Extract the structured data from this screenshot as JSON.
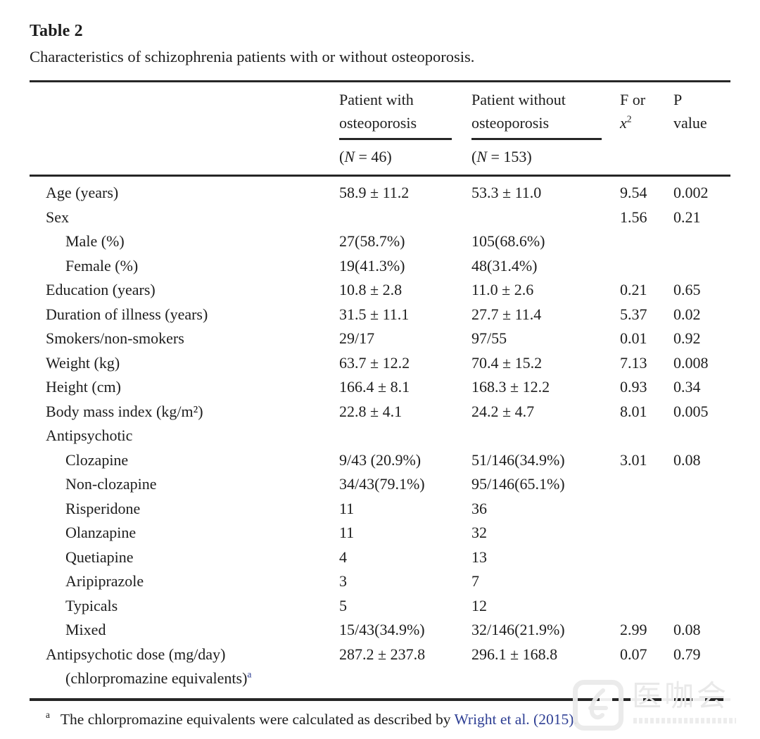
{
  "colors": {
    "text": "#1d1d1d",
    "rule": "#262626",
    "link_blue": "#2e3f94",
    "watermark": "#eaeaea"
  },
  "title": "Table 2",
  "caption": "Characteristics of schizophrenia patients with or without osteoporosis.",
  "table": {
    "header": {
      "col_with": {
        "line1": "Patient with",
        "line2": "osteoporosis",
        "n_open": "(",
        "n_italic": "N",
        "n_rest": " = 46)"
      },
      "col_without": {
        "line1": "Patient without",
        "line2": "osteoporosis",
        "n_open": "(",
        "n_italic": "N",
        "n_rest": " = 153)"
      },
      "col_stat": {
        "line1": "F or",
        "sym": "x",
        "exp": "2"
      },
      "col_p": {
        "line1": "P",
        "line2": "value"
      }
    },
    "rows": [
      {
        "label": "Age (years)",
        "indent": false,
        "v1": "58.9 ± 11.2",
        "v2": "53.3 ± 11.0",
        "f": "9.54",
        "p": "0.002"
      },
      {
        "label": "Sex",
        "indent": false,
        "v1": "",
        "v2": "",
        "f": "1.56",
        "p": "0.21"
      },
      {
        "label": "Male (%)",
        "indent": true,
        "v1": "27(58.7%)",
        "v2": "105(68.6%)",
        "f": "",
        "p": ""
      },
      {
        "label": "Female (%)",
        "indent": true,
        "v1": "19(41.3%)",
        "v2": "48(31.4%)",
        "f": "",
        "p": ""
      },
      {
        "label": "Education (years)",
        "indent": false,
        "v1": "10.8 ± 2.8",
        "v2": "11.0 ± 2.6",
        "f": "0.21",
        "p": "0.65"
      },
      {
        "label": "Duration of illness (years)",
        "indent": false,
        "v1": "31.5 ± 11.1",
        "v2": "27.7 ± 11.4",
        "f": "5.37",
        "p": "0.02"
      },
      {
        "label": "Smokers/non-smokers",
        "indent": false,
        "v1": "29/17",
        "v2": "97/55",
        "f": "0.01",
        "p": "0.92"
      },
      {
        "label": "Weight (kg)",
        "indent": false,
        "v1": "63.7 ± 12.2",
        "v2": "70.4 ± 15.2",
        "f": "7.13",
        "p": "0.008"
      },
      {
        "label": "Height (cm)",
        "indent": false,
        "v1": "166.4 ± 8.1",
        "v2": "168.3 ± 12.2",
        "f": "0.93",
        "p": "0.34"
      },
      {
        "label": "Body mass index (kg/m²)",
        "indent": false,
        "v1": "22.8 ± 4.1",
        "v2": "24.2 ± 4.7",
        "f": "8.01",
        "p": "0.005"
      },
      {
        "label": "Antipsychotic",
        "indent": false,
        "v1": "",
        "v2": "",
        "f": "",
        "p": ""
      },
      {
        "label": "Clozapine",
        "indent": true,
        "v1": "9/43 (20.9%)",
        "v2": "51/146(34.9%)",
        "f": "3.01",
        "p": "0.08"
      },
      {
        "label": "Non-clozapine",
        "indent": true,
        "v1": "34/43(79.1%)",
        "v2": "95/146(65.1%)",
        "f": "",
        "p": ""
      },
      {
        "label": "Risperidone",
        "indent": true,
        "v1": "11",
        "v2": "36",
        "f": "",
        "p": ""
      },
      {
        "label": "Olanzapine",
        "indent": true,
        "v1": "11",
        "v2": "32",
        "f": "",
        "p": ""
      },
      {
        "label": "Quetiapine",
        "indent": true,
        "v1": "4",
        "v2": "13",
        "f": "",
        "p": ""
      },
      {
        "label": "Aripiprazole",
        "indent": true,
        "v1": "3",
        "v2": "7",
        "f": "",
        "p": ""
      },
      {
        "label": "Typicals",
        "indent": true,
        "v1": "5",
        "v2": "12",
        "f": "",
        "p": ""
      },
      {
        "label": "Mixed",
        "indent": true,
        "v1": "15/43(34.9%)",
        "v2": "32/146(21.9%)",
        "f": "2.99",
        "p": "0.08"
      },
      {
        "label": "Antipsychotic dose (mg/day)",
        "indent": false,
        "label2": "(chlorpromazine equivalents)",
        "label2_sup": "a",
        "v1": "287.2 ± 237.8",
        "v2": "296.1 ± 168.8",
        "f": "0.07",
        "p": "0.79"
      }
    ]
  },
  "footnote": {
    "marker": "a",
    "text": "The chlorpromazine equivalents were calculated as described by ",
    "link_text": "Wright et al. (2015)",
    "suffix": "."
  },
  "watermark": {
    "text": "医咖会"
  }
}
